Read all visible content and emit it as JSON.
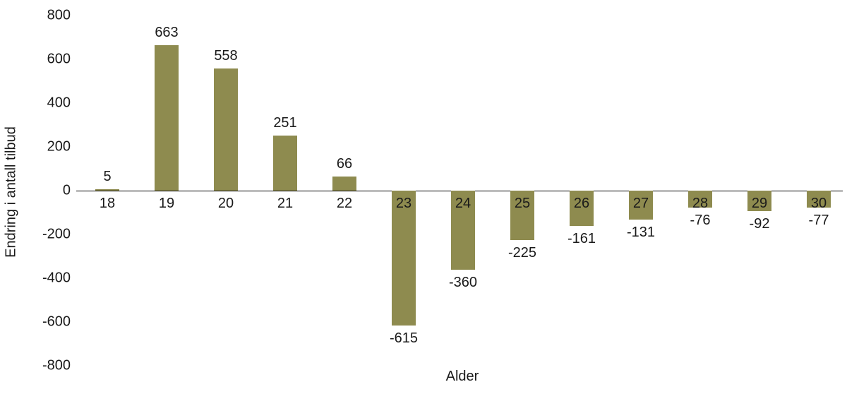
{
  "chart_data": {
    "type": "bar",
    "title": "",
    "xlabel": "Alder",
    "ylabel": "Endring i antall tilbud",
    "categories": [
      "18",
      "19",
      "20",
      "21",
      "22",
      "23",
      "24",
      "25",
      "26",
      "27",
      "28",
      "29",
      "30"
    ],
    "values": [
      5,
      663,
      558,
      251,
      66,
      -615,
      -360,
      -225,
      -161,
      -131,
      -76,
      -92,
      -77
    ],
    "ylim": [
      -800,
      800
    ],
    "y_ticks": [
      800,
      600,
      400,
      200,
      0,
      -200,
      -400,
      -600,
      -800
    ],
    "grid": false,
    "legend": "none",
    "bar_color": "#8E8B4F",
    "text_color": "#1a1a1a",
    "axis_line_color": "#000000"
  }
}
